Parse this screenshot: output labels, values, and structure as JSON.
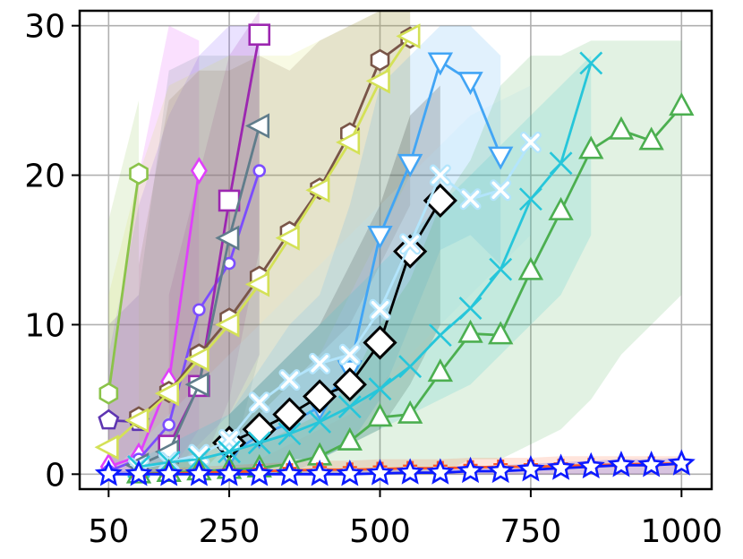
{
  "chart_data": {
    "type": "line",
    "title": "",
    "xlabel": "",
    "ylabel": "",
    "xlim": [
      2,
      1050
    ],
    "ylim": [
      -1,
      31
    ],
    "xticks": [
      50,
      250,
      500,
      750,
      1000
    ],
    "xtick_labels": [
      "50",
      "250",
      "500",
      "750",
      "1000"
    ],
    "yticks": [
      0,
      10,
      20,
      30
    ],
    "ytick_labels": [
      "0",
      "10",
      "20",
      "30"
    ],
    "grid": true,
    "legend": "none",
    "series": [
      {
        "color": "#8bc34a",
        "marker": "hexagon",
        "x": [
          50,
          100
        ],
        "y": [
          5.4,
          20.1
        ],
        "band_upper": [
          17,
          25
        ],
        "band_lower": [
          0,
          2
        ]
      },
      {
        "color": "#e040fb",
        "marker": "diamond",
        "x": [
          50,
          100,
          150,
          200
        ],
        "y": [
          0.5,
          1.2,
          6.2,
          20.3
        ],
        "band_upper": [
          6,
          20,
          30,
          29
        ],
        "band_lower": [
          0,
          0,
          0,
          3
        ]
      },
      {
        "color": "#7c4dff",
        "marker": "circle",
        "x": [
          50,
          100,
          150,
          200,
          250,
          300
        ],
        "y": [
          0.2,
          1.0,
          3.3,
          11.0,
          14.1,
          20.3
        ],
        "band_upper": [
          8,
          18,
          24,
          28,
          30,
          30
        ],
        "band_lower": [
          0,
          0,
          0,
          2,
          4,
          8
        ]
      },
      {
        "color": "#9c27b0",
        "marker": "square",
        "x": [
          150,
          200,
          250,
          300
        ],
        "y": [
          1.9,
          5.9,
          18.3,
          29.4
        ],
        "band_upper": [
          12,
          20,
          28,
          31
        ],
        "band_lower": [
          0,
          0,
          5,
          15
        ]
      },
      {
        "color": "#607d8b",
        "marker": "tri_left",
        "x": [
          100,
          150,
          200,
          250,
          300
        ],
        "y": [
          0.6,
          1.5,
          6.0,
          15.8,
          23.3
        ],
        "band_upper": [
          12,
          27,
          28,
          28,
          28
        ],
        "band_lower": [
          0,
          0,
          0,
          0,
          8
        ]
      },
      {
        "color": "#5e35b1",
        "marker": "pentagon",
        "x": [
          50,
          100
        ],
        "y": [
          3.6,
          3.5
        ],
        "band_upper": [
          10,
          12
        ],
        "band_lower": [
          0,
          0
        ]
      },
      {
        "color": "#795548",
        "marker": "hexagon",
        "x": [
          100,
          150,
          200,
          250,
          300,
          350,
          400,
          450,
          500,
          550
        ],
        "y": [
          3.8,
          5.5,
          8.0,
          10.4,
          13.2,
          16.2,
          19.1,
          22.8,
          27.7,
          29.2
        ],
        "band_upper": [
          14,
          25,
          27,
          27,
          28,
          27,
          29,
          30,
          31,
          31
        ],
        "band_lower": [
          0,
          0,
          0,
          2,
          4,
          6,
          8,
          10,
          14,
          18
        ]
      },
      {
        "color": "#d4e157",
        "marker": "tri_left",
        "x": [
          50,
          100,
          150,
          200,
          250,
          300,
          350,
          400,
          450,
          500,
          550
        ],
        "y": [
          1.8,
          3.6,
          5.4,
          7.7,
          10.0,
          12.7,
          15.8,
          19.0,
          22.2,
          26.3,
          29.3
        ],
        "band_upper": [
          12,
          20,
          26,
          27,
          28,
          28,
          28,
          29,
          30,
          31,
          31
        ],
        "band_lower": [
          0,
          0,
          0,
          0,
          2,
          4,
          6,
          8,
          12,
          16,
          20
        ]
      },
      {
        "color": "#42a5f5",
        "marker": "tri_down",
        "x": [
          250,
          300,
          350,
          400,
          450,
          500,
          550,
          600,
          650,
          700
        ],
        "y": [
          1.3,
          2.6,
          3.4,
          4.5,
          7.0,
          16.0,
          20.8,
          27.6,
          26.3,
          21.3
        ],
        "band_upper": [
          4,
          7,
          10,
          12,
          18,
          26,
          28,
          30,
          30,
          28
        ],
        "band_lower": [
          0,
          0,
          0,
          1,
          2,
          5,
          10,
          15,
          16,
          14
        ]
      },
      {
        "color": "#000000",
        "marker": "diamond_open",
        "x": [
          250,
          300,
          350,
          400,
          450,
          500,
          550,
          600
        ],
        "y": [
          2.1,
          3.0,
          4.0,
          5.2,
          6.0,
          8.8,
          14.9,
          18.3
        ],
        "band_upper": [
          4,
          6,
          8,
          10,
          14,
          18,
          24,
          26
        ],
        "band_lower": [
          0,
          0,
          1,
          1,
          2,
          3,
          6,
          10
        ]
      },
      {
        "color": "#b3e5fc",
        "marker": "x_thick",
        "x": [
          100,
          150,
          200,
          250,
          300,
          350,
          400,
          450,
          500,
          550,
          600,
          650,
          700,
          750
        ],
        "y": [
          0.4,
          0.8,
          1.3,
          2.3,
          4.8,
          6.3,
          7.4,
          8.0,
          11.0,
          15.4,
          20.0,
          18.4,
          19.0,
          22.2
        ],
        "band_upper": [
          2,
          4,
          6,
          8,
          10,
          12,
          14,
          16,
          18,
          20,
          22,
          24,
          25,
          26
        ],
        "band_lower": [
          0,
          0,
          0,
          0,
          1,
          2,
          3,
          4,
          6,
          8,
          10,
          12,
          14,
          16
        ]
      },
      {
        "color": "#26c6da",
        "marker": "x",
        "x": [
          100,
          150,
          200,
          250,
          300,
          350,
          400,
          450,
          500,
          550,
          600,
          650,
          700,
          750,
          800,
          850
        ],
        "y": [
          0.5,
          0.8,
          1.0,
          1.5,
          2.1,
          2.7,
          3.5,
          4.5,
          5.7,
          7.2,
          9.3,
          11.1,
          13.7,
          18.4,
          20.8,
          27.5
        ],
        "band_upper": [
          1,
          2,
          3,
          4,
          6,
          8,
          10,
          12,
          14,
          16,
          18,
          20,
          22,
          24,
          26,
          28
        ],
        "band_lower": [
          0,
          0,
          0,
          0,
          0,
          1,
          1,
          2,
          3,
          4,
          5,
          6,
          8,
          10,
          12,
          16
        ]
      },
      {
        "color": "#4caf50",
        "marker": "tri_up",
        "x": [
          100,
          150,
          200,
          250,
          300,
          350,
          400,
          450,
          500,
          550,
          600,
          650,
          700,
          750,
          800,
          850,
          900,
          950,
          1000
        ],
        "y": [
          0.0,
          0.1,
          0.2,
          0.3,
          0.4,
          0.7,
          1.2,
          2.2,
          3.8,
          4.0,
          6.8,
          9.4,
          9.3,
          13.6,
          17.6,
          21.7,
          23.0,
          22.3,
          24.6
        ],
        "band_upper": [
          0.5,
          1,
          1,
          1.5,
          2,
          3,
          4,
          6,
          10,
          13,
          18,
          21,
          26,
          28,
          28,
          29,
          29,
          29,
          29
        ],
        "band_lower": [
          0,
          0,
          0,
          0,
          0,
          0,
          0,
          0,
          0,
          0,
          0,
          1,
          1,
          2,
          3,
          5,
          8,
          10,
          12
        ]
      },
      {
        "color": "#ff5722",
        "marker": "plus_bold",
        "x": [
          100,
          150,
          200,
          250,
          300,
          350,
          400,
          450,
          500,
          550,
          600,
          650,
          700,
          750,
          800,
          850,
          900,
          950,
          1000
        ],
        "y": [
          0.0,
          0.05,
          0.1,
          0.15,
          0.2,
          0.25,
          0.3,
          0.3,
          0.35,
          0.4,
          0.4,
          0.45,
          0.5,
          0.5,
          0.55,
          0.6,
          0.65,
          0.7,
          0.7
        ],
        "band_upper": [
          0.3,
          0.4,
          0.5,
          0.6,
          0.7,
          0.8,
          0.9,
          0.9,
          1.0,
          1.0,
          1.0,
          1.1,
          1.1,
          1.1,
          1.2,
          1.2,
          1.2,
          1.2,
          1.2
        ],
        "band_lower": [
          0,
          0,
          0,
          0,
          0,
          0,
          0,
          0,
          0,
          0,
          0,
          0,
          0,
          0,
          0,
          0,
          0,
          0,
          0
        ]
      },
      {
        "color": "#0d1aff",
        "marker": "star",
        "x": [
          50,
          100,
          150,
          200,
          250,
          300,
          350,
          400,
          450,
          500,
          550,
          600,
          650,
          700,
          750,
          800,
          850,
          900,
          950,
          1000
        ],
        "y": [
          0,
          0,
          0,
          0,
          0,
          0,
          0,
          0,
          0,
          0.05,
          0.1,
          0.1,
          0.2,
          0.2,
          0.3,
          0.4,
          0.5,
          0.6,
          0.6,
          0.7
        ],
        "band_upper": [
          0.2,
          0.2,
          0.2,
          0.2,
          0.2,
          0.2,
          0.2,
          0.2,
          0.3,
          0.3,
          0.4,
          0.4,
          0.5,
          0.6,
          0.7,
          0.8,
          0.9,
          1.0,
          1.0,
          1.1
        ],
        "band_lower": [
          0,
          0,
          0,
          0,
          0,
          0,
          0,
          0,
          0,
          0,
          0,
          0,
          0,
          0,
          0,
          0,
          0,
          0,
          0,
          0
        ]
      }
    ]
  }
}
